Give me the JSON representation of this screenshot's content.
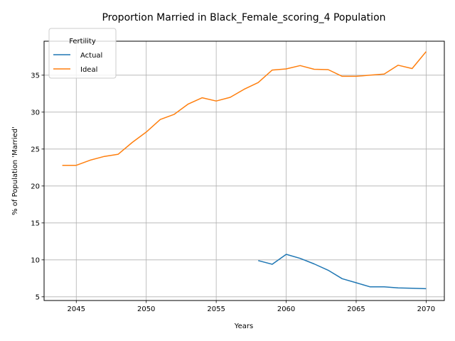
{
  "chart_data": {
    "type": "line",
    "title": "Proportion Married in Black_Female_scoring_4 Population",
    "xlabel": "Years",
    "ylabel": "% of Population 'Married'",
    "xlim": [
      2042.7,
      2071.3
    ],
    "ylim": [
      4.5,
      39.6
    ],
    "xticks": [
      2045,
      2050,
      2055,
      2060,
      2065,
      2070
    ],
    "yticks": [
      5,
      10,
      15,
      20,
      25,
      30,
      35
    ],
    "grid": true,
    "legend": {
      "title": "Fertility",
      "position": "top-left"
    },
    "series": [
      {
        "name": "Actual",
        "color": "#1f77b4",
        "x": [
          2058,
          2059,
          2060,
          2061,
          2062,
          2063,
          2064,
          2065,
          2066,
          2067,
          2068,
          2069,
          2070
        ],
        "y": [
          9.9,
          9.4,
          10.75,
          10.2,
          9.45,
          8.6,
          7.45,
          6.9,
          6.35,
          6.35,
          6.2,
          6.15,
          6.1
        ]
      },
      {
        "name": "Ideal",
        "color": "#ff7f0e",
        "x": [
          2044,
          2045,
          2046,
          2047,
          2048,
          2049,
          2050,
          2051,
          2052,
          2053,
          2054,
          2055,
          2056,
          2057,
          2058,
          2059,
          2060,
          2061,
          2062,
          2063,
          2064,
          2065,
          2066,
          2067,
          2068,
          2069,
          2070
        ],
        "y": [
          22.8,
          22.8,
          23.5,
          24.0,
          24.3,
          25.9,
          27.3,
          29.0,
          29.7,
          31.1,
          31.95,
          31.5,
          32.0,
          33.1,
          34.0,
          35.7,
          35.85,
          36.3,
          35.8,
          35.75,
          34.85,
          34.85,
          35.0,
          35.15,
          36.35,
          35.9,
          38.2
        ]
      }
    ]
  }
}
